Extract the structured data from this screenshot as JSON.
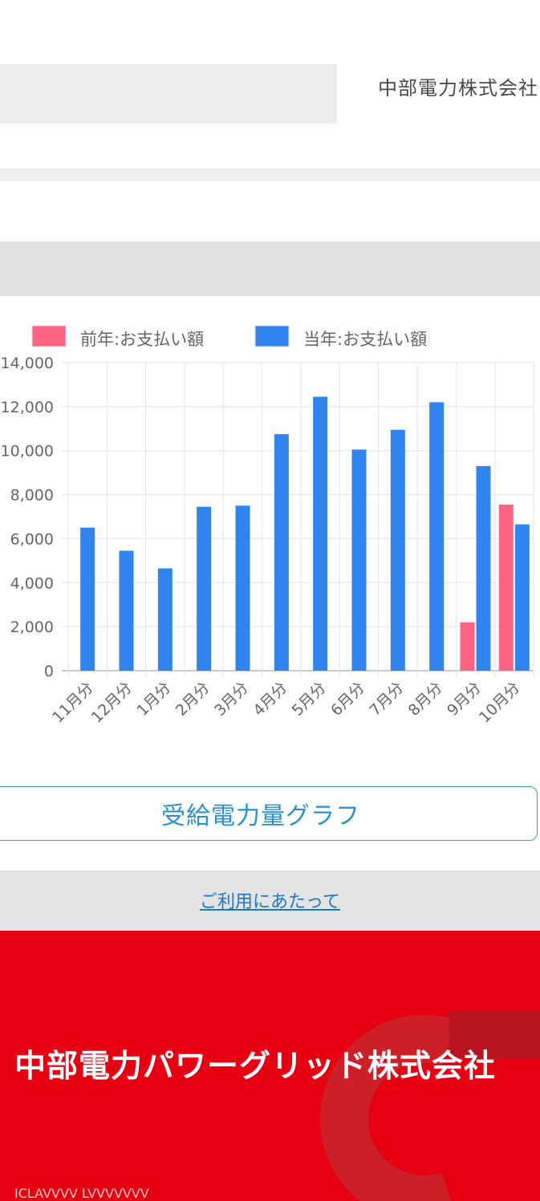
{
  "header": {
    "company": "中部電力株式会社"
  },
  "chart_data": {
    "type": "bar",
    "categories": [
      "11月分",
      "12月分",
      "1月分",
      "2月分",
      "3月分",
      "4月分",
      "5月分",
      "6月分",
      "7月分",
      "8月分",
      "9月分",
      "10月分"
    ],
    "series": [
      {
        "name": "前年:お支払い額",
        "color": "#ff6384",
        "values": [
          null,
          null,
          null,
          null,
          null,
          null,
          null,
          null,
          null,
          null,
          2200,
          7550
        ]
      },
      {
        "name": "当年:お支払い額",
        "color": "#2f84f0",
        "values": [
          6500,
          5450,
          4650,
          7450,
          7500,
          10750,
          12450,
          10050,
          10950,
          12200,
          9300,
          6650
        ]
      }
    ],
    "ylim": [
      0,
      14000
    ],
    "yticks": [
      "0",
      "2,000",
      "4,000",
      "6,000",
      "8,000",
      "10,000",
      "12,000",
      "14,000"
    ],
    "grid": true,
    "legend": "top"
  },
  "buttons": {
    "graph": "受給電力量グラフ"
  },
  "links": {
    "usage": "ご利用にあたって"
  },
  "footer": {
    "company": "中部電力パワーグリッド株式会社",
    "partial_text": "ICLAVVVV LVVVVVVV"
  }
}
